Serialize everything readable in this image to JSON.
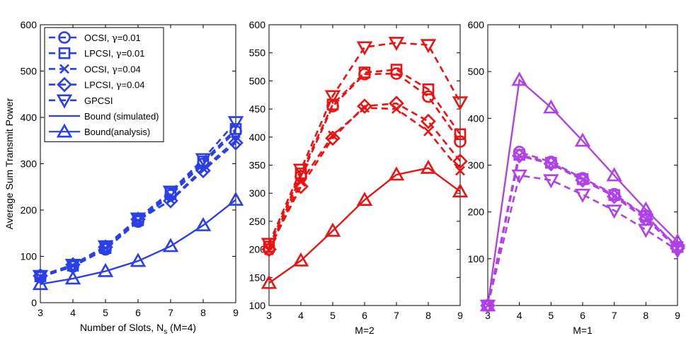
{
  "chart_data": [
    {
      "type": "line",
      "xlabel": "Number of Slots, N",
      "xlabel_sub": "s",
      "xlabel_suffix": " (M=4)",
      "ylabel": "Average Sum Transmit Power",
      "xlim": [
        3,
        9
      ],
      "ylim": [
        0,
        600
      ],
      "xticks": [
        3,
        4,
        5,
        6,
        7,
        8,
        9
      ],
      "yticks": [
        0,
        100,
        200,
        300,
        400,
        500,
        600
      ],
      "color": "#2a3fe8",
      "legend_position": "top-left",
      "legend": [
        {
          "prefix": "OCSI, ",
          "gamma": "γ",
          "suffix": "=0.01",
          "marker": "circle",
          "dash": true
        },
        {
          "prefix": "LPCSI, ",
          "gamma": "γ",
          "suffix": "=0.01",
          "marker": "square",
          "dash": true
        },
        {
          "prefix": "OCSI, ",
          "gamma": "γ",
          "suffix": "=0.04",
          "marker": "x",
          "dash": true
        },
        {
          "prefix": "LPCSI, ",
          "gamma": "γ",
          "suffix": "=0.04",
          "marker": "diamond",
          "dash": true
        },
        {
          "prefix": "GPCSI",
          "gamma": "",
          "suffix": "",
          "marker": "tri-down",
          "dash": true
        },
        {
          "prefix": "Bound (simulated)",
          "gamma": "",
          "suffix": "",
          "marker": "none",
          "dash": false
        },
        {
          "prefix": "Bound(analysis)",
          "gamma": "",
          "suffix": "",
          "marker": "tri-up",
          "dash": false
        }
      ],
      "series": [
        {
          "name": "OCSI, γ=0.01",
          "marker": "circle",
          "dash": true,
          "x": [
            3,
            4,
            5,
            6,
            7,
            8,
            9
          ],
          "values": [
            55,
            78,
            115,
            175,
            232,
            300,
            370
          ]
        },
        {
          "name": "LPCSI, γ=0.01",
          "marker": "square",
          "dash": true,
          "x": [
            3,
            4,
            5,
            6,
            7,
            8,
            9
          ],
          "values": [
            57,
            80,
            118,
            178,
            236,
            305,
            375
          ]
        },
        {
          "name": "OCSI, γ=0.04",
          "marker": "x",
          "dash": true,
          "x": [
            3,
            4,
            5,
            6,
            7,
            8,
            9
          ],
          "values": [
            56,
            80,
            118,
            177,
            222,
            290,
            350
          ]
        },
        {
          "name": "LPCSI, γ=0.04",
          "marker": "diamond",
          "dash": true,
          "x": [
            3,
            4,
            5,
            6,
            7,
            8,
            9
          ],
          "values": [
            58,
            82,
            120,
            180,
            220,
            285,
            345
          ]
        },
        {
          "name": "GPCSI",
          "marker": "tri-down",
          "dash": true,
          "x": [
            3,
            4,
            5,
            6,
            7,
            8,
            9
          ],
          "values": [
            58,
            82,
            122,
            182,
            240,
            310,
            390
          ]
        },
        {
          "name": "Bound (simulated)",
          "marker": "none",
          "dash": false,
          "x": [
            3,
            4,
            5,
            6,
            7,
            8,
            9
          ],
          "values": [
            40,
            52,
            68,
            90,
            122,
            167,
            222
          ]
        },
        {
          "name": "Bound(analysis)",
          "marker": "tri-up",
          "dash": false,
          "x": [
            3,
            4,
            5,
            6,
            7,
            8,
            9
          ],
          "values": [
            40,
            52,
            68,
            90,
            122,
            167,
            222
          ]
        }
      ]
    },
    {
      "type": "line",
      "xlabel": "M=2",
      "ylabel": "",
      "xlim": [
        3,
        9
      ],
      "ylim": [
        100,
        600
      ],
      "xticks": [
        3,
        4,
        5,
        6,
        7,
        8,
        9
      ],
      "yticks": [
        100,
        150,
        200,
        250,
        300,
        350,
        400,
        450,
        500,
        550,
        600
      ],
      "color": "#ee1111",
      "series": [
        {
          "name": "OCSI, γ=0.01",
          "marker": "circle",
          "dash": true,
          "x": [
            3,
            4,
            5,
            6,
            7,
            8,
            9
          ],
          "values": [
            200,
            330,
            455,
            512,
            513,
            472,
            392
          ]
        },
        {
          "name": "LPCSI, γ=0.01",
          "marker": "square",
          "dash": true,
          "x": [
            3,
            4,
            5,
            6,
            7,
            8,
            9
          ],
          "values": [
            205,
            335,
            458,
            515,
            520,
            485,
            405
          ]
        },
        {
          "name": "OCSI, γ=0.04",
          "marker": "x",
          "dash": true,
          "x": [
            3,
            4,
            5,
            6,
            7,
            8,
            9
          ],
          "values": [
            198,
            320,
            403,
            452,
            450,
            410,
            340
          ]
        },
        {
          "name": "LPCSI, γ=0.04",
          "marker": "diamond",
          "dash": true,
          "x": [
            3,
            4,
            5,
            6,
            7,
            8,
            9
          ],
          "values": [
            200,
            312,
            398,
            455,
            460,
            428,
            357
          ]
        },
        {
          "name": "GPCSI",
          "marker": "tri-down",
          "dash": true,
          "x": [
            3,
            4,
            5,
            6,
            7,
            8,
            9
          ],
          "values": [
            210,
            342,
            473,
            560,
            568,
            564,
            462
          ]
        },
        {
          "name": "Bound (simulated)",
          "marker": "none",
          "dash": false,
          "x": [
            3,
            4,
            5,
            6,
            7,
            8,
            9
          ],
          "values": [
            140,
            180,
            233,
            288,
            333,
            345,
            303
          ]
        },
        {
          "name": "Bound(analysis)",
          "marker": "tri-up",
          "dash": false,
          "x": [
            3,
            4,
            5,
            6,
            7,
            8,
            9
          ],
          "values": [
            140,
            180,
            233,
            288,
            333,
            345,
            303
          ]
        }
      ]
    },
    {
      "type": "line",
      "xlabel": "M=1",
      "ylabel": "",
      "xlim": [
        3,
        9
      ],
      "ylim": [
        0,
        600
      ],
      "xticks": [
        3,
        4,
        5,
        6,
        7,
        8,
        9
      ],
      "yticks": [
        100,
        200,
        300,
        400,
        500,
        600
      ],
      "color": "#b040e8",
      "series": [
        {
          "name": "OCSI, γ=0.01",
          "marker": "circle",
          "dash": true,
          "x": [
            3,
            4,
            5,
            6,
            7,
            8,
            9
          ],
          "values": [
            0,
            328,
            307,
            272,
            238,
            192,
            125
          ]
        },
        {
          "name": "LPCSI, γ=0.01",
          "marker": "square",
          "dash": true,
          "x": [
            3,
            4,
            5,
            6,
            7,
            8,
            9
          ],
          "values": [
            0,
            322,
            305,
            270,
            236,
            190,
            125
          ]
        },
        {
          "name": "OCSI, γ=0.04",
          "marker": "x",
          "dash": true,
          "x": [
            3,
            4,
            5,
            6,
            7,
            8,
            9
          ],
          "values": [
            0,
            320,
            303,
            268,
            233,
            185,
            122
          ]
        },
        {
          "name": "LPCSI, γ=0.04",
          "marker": "diamond",
          "dash": true,
          "x": [
            3,
            4,
            5,
            6,
            7,
            8,
            9
          ],
          "values": [
            0,
            320,
            303,
            268,
            233,
            185,
            122
          ]
        },
        {
          "name": "GPCSI",
          "marker": "tri-down",
          "dash": true,
          "x": [
            3,
            4,
            5,
            6,
            7,
            8,
            9
          ],
          "values": [
            0,
            278,
            268,
            237,
            203,
            162,
            118
          ]
        },
        {
          "name": "Bound (simulated)",
          "marker": "none",
          "dash": false,
          "x": [
            3,
            4,
            5,
            6,
            7,
            8,
            9
          ],
          "values": [
            0,
            482,
            423,
            352,
            278,
            205,
            137
          ]
        },
        {
          "name": "Bound(analysis)",
          "marker": "tri-up",
          "dash": false,
          "x": [
            3,
            4,
            5,
            6,
            7,
            8,
            9
          ],
          "values": [
            0,
            482,
            423,
            352,
            278,
            205,
            137
          ]
        }
      ]
    }
  ]
}
